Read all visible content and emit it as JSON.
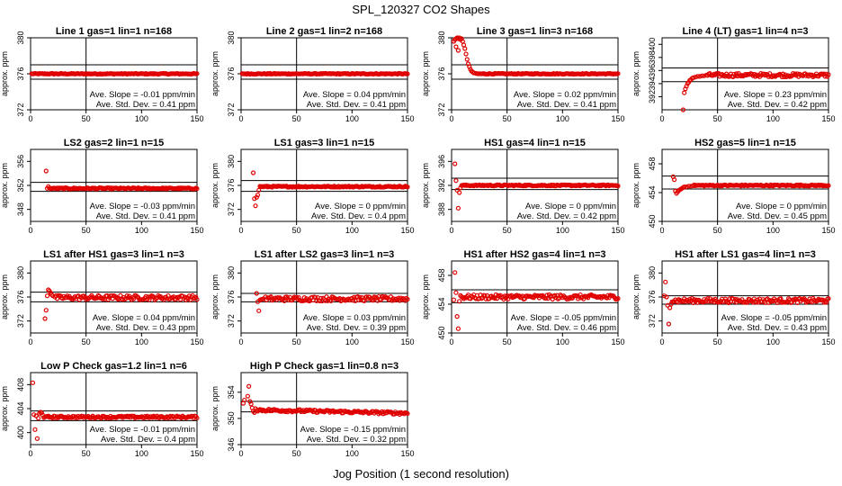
{
  "title": "SPL_120327  CO2 Shapes",
  "xlabel": "Jog Position (1 second resolution)",
  "ylabel": "approx. ppm",
  "chart_data": [
    {
      "type": "scatter",
      "title": "Line 1 gas=1 lin=1 n=168",
      "ylim": [
        372,
        380
      ],
      "yticks": [
        372,
        376,
        380
      ],
      "xlim": [
        0,
        150
      ],
      "xticks": [
        0,
        50,
        100,
        150
      ],
      "level": 376,
      "band": [
        375.4,
        377
      ],
      "start": 1,
      "end": 150,
      "noise": 0.05,
      "vline": 50,
      "transient": [],
      "slope_text": "Ave. Slope = -0.01  ppm/min",
      "std_text": "Ave. Std. Dev. = 0.41  ppm"
    },
    {
      "type": "scatter",
      "title": "Line 2 gas=1 lin=2 n=168",
      "ylim": [
        372,
        380
      ],
      "yticks": [
        372,
        376,
        380
      ],
      "xlim": [
        0,
        150
      ],
      "xticks": [
        0,
        50,
        100,
        150
      ],
      "level": 376,
      "band": [
        375.4,
        377
      ],
      "start": 1,
      "end": 150,
      "noise": 0.05,
      "vline": 50,
      "transient": [],
      "slope_text": "Ave. Slope = 0.04  ppm/min",
      "std_text": "Ave. Std. Dev. = 0.41  ppm"
    },
    {
      "type": "scatter",
      "title": "Line 3 gas=1 lin=3 n=168",
      "ylim": [
        372,
        380
      ],
      "yticks": [
        372,
        376,
        380
      ],
      "xlim": [
        0,
        150
      ],
      "xticks": [
        0,
        50,
        100,
        150
      ],
      "level": 376,
      "band": [
        375.4,
        377
      ],
      "start": 22,
      "end": 150,
      "noise": 0.05,
      "vline": 50,
      "transient": [
        [
          2,
          379.6
        ],
        [
          3,
          379.8
        ],
        [
          4,
          379.9
        ],
        [
          5,
          380
        ],
        [
          6,
          379.9
        ],
        [
          7,
          380
        ],
        [
          8,
          379.8
        ],
        [
          9,
          379.9
        ],
        [
          10,
          379.6
        ],
        [
          11,
          379.2
        ],
        [
          12,
          378.8
        ],
        [
          13,
          378.2
        ],
        [
          14,
          377.6
        ],
        [
          15,
          377.1
        ],
        [
          16,
          376.8
        ],
        [
          17,
          376.5
        ],
        [
          18,
          376.3
        ],
        [
          19,
          376.2
        ],
        [
          20,
          376.1
        ],
        [
          4,
          379.0
        ],
        [
          6,
          378.6
        ]
      ],
      "slope_text": "Ave. Slope = 0.02  ppm/min",
      "std_text": "Ave. Std. Dev. = 0.41  ppm"
    },
    {
      "type": "scatter",
      "title": "Line 4 (LT) gas=1 lin=4 n=3",
      "ylim": [
        390,
        401
      ],
      "yticks": [
        392,
        394,
        396,
        398,
        400
      ],
      "xlim": [
        0,
        150
      ],
      "xticks": [
        0,
        50,
        100,
        150
      ],
      "level": 395.3,
      "band": [
        394.3,
        396.4
      ],
      "start": 40,
      "end": 150,
      "noise": 0.2,
      "vline": 50,
      "transient": [
        [
          19,
          390
        ],
        [
          20,
          392.6
        ],
        [
          21,
          393.2
        ],
        [
          22,
          393.6
        ],
        [
          23,
          394
        ],
        [
          24,
          394.2
        ],
        [
          25,
          394.5
        ],
        [
          26,
          394.6
        ],
        [
          27,
          394.8
        ],
        [
          28,
          394.9
        ],
        [
          30,
          395
        ],
        [
          32,
          395.1
        ],
        [
          34,
          395.1
        ],
        [
          36,
          395.2
        ],
        [
          38,
          395.2
        ]
      ],
      "slope_text": "Ave. Slope = 0.23  ppm/min",
      "std_text": "Ave. Std. Dev. = 0.42  ppm"
    },
    {
      "type": "scatter",
      "title": "LS2 gas=2 lin=1 n=15",
      "ylim": [
        346,
        358
      ],
      "yticks": [
        348,
        352,
        356
      ],
      "xlim": [
        0,
        150
      ],
      "xticks": [
        0,
        50,
        100,
        150
      ],
      "level": 351.5,
      "band": [
        351,
        352.5
      ],
      "start": 17,
      "end": 150,
      "noise": 0.07,
      "vline": 50,
      "transient": [
        [
          14,
          354.4
        ],
        [
          15,
          351.5
        ],
        [
          16,
          351.8
        ]
      ],
      "slope_text": "Ave. Slope = -0.03  ppm/min",
      "std_text": "Ave. Std. Dev. = 0.41  ppm"
    },
    {
      "type": "scatter",
      "title": "LS1 gas=3 lin=1 n=15",
      "ylim": [
        370,
        382
      ],
      "yticks": [
        372,
        376,
        380
      ],
      "xlim": [
        0,
        150
      ],
      "xticks": [
        0,
        50,
        100,
        150
      ],
      "level": 375.8,
      "band": [
        375,
        376.8
      ],
      "start": 17,
      "end": 150,
      "noise": 0.07,
      "vline": 50,
      "transient": [
        [
          11,
          378.1
        ],
        [
          12,
          373.8
        ],
        [
          13,
          372.6
        ],
        [
          14,
          374
        ],
        [
          15,
          374.4
        ],
        [
          16,
          375.2
        ]
      ],
      "slope_text": "Ave. Slope = 0  ppm/min",
      "std_text": "Ave. Std. Dev. = 0.4  ppm"
    },
    {
      "type": "scatter",
      "title": "HS1 gas=4 lin=1 n=15",
      "ylim": [
        386,
        398
      ],
      "yticks": [
        388,
        392,
        396
      ],
      "xlim": [
        0,
        150
      ],
      "xticks": [
        0,
        50,
        100,
        150
      ],
      "level": 392,
      "band": [
        391.3,
        393.2
      ],
      "start": 9,
      "end": 150,
      "noise": 0.07,
      "vline": 50,
      "transient": [
        [
          3,
          395.6
        ],
        [
          4,
          392.8
        ],
        [
          5,
          391.2
        ],
        [
          6,
          388.2
        ],
        [
          7,
          390.8
        ],
        [
          8,
          391.6
        ]
      ],
      "slope_text": "Ave. Slope = 0  ppm/min",
      "std_text": "Ave. Std. Dev. = 0.42  ppm"
    },
    {
      "type": "scatter",
      "title": "HS2 gas=5 lin=1 n=15",
      "ylim": [
        450,
        460
      ],
      "yticks": [
        450,
        454,
        458
      ],
      "xlim": [
        0,
        150
      ],
      "xticks": [
        0,
        50,
        100,
        150
      ],
      "level": 455,
      "band": [
        454.5,
        456.3
      ],
      "start": 28,
      "end": 150,
      "noise": 0.07,
      "vline": 50,
      "transient": [
        [
          10,
          456.2
        ],
        [
          11,
          455.8
        ],
        [
          12,
          454.2
        ],
        [
          13,
          453.9
        ],
        [
          14,
          454.1
        ],
        [
          15,
          454.3
        ],
        [
          16,
          454.4
        ],
        [
          17,
          454.5
        ],
        [
          18,
          454.6
        ],
        [
          19,
          454.7
        ],
        [
          20,
          454.8
        ],
        [
          22,
          454.8
        ],
        [
          24,
          454.9
        ],
        [
          26,
          454.9
        ]
      ],
      "slope_text": "Ave. Slope = 0  ppm/min",
      "std_text": "Ave. Std. Dev. = 0.45  ppm"
    },
    {
      "type": "scatter",
      "title": "LS1 after HS1 gas=3 lin=1 n=3",
      "ylim": [
        370,
        382
      ],
      "yticks": [
        372,
        376,
        380
      ],
      "xlim": [
        0,
        150
      ],
      "xticks": [
        0,
        50,
        100,
        150
      ],
      "level": 375.9,
      "band": [
        375.2,
        376.8
      ],
      "start": 22,
      "end": 150,
      "noise": 0.25,
      "vline": 50,
      "transient": [
        [
          13,
          372.4
        ],
        [
          14,
          373.8
        ],
        [
          15,
          376.2
        ],
        [
          16,
          377.2
        ],
        [
          17,
          377
        ],
        [
          18,
          376.7
        ],
        [
          19,
          376.4
        ],
        [
          20,
          376.2
        ]
      ],
      "slope_text": "Ave. Slope = 0.04  ppm/min",
      "std_text": "Ave. Std. Dev. = 0.43  ppm"
    },
    {
      "type": "scatter",
      "title": "LS1 after LS2 gas=3 lin=1 n=3",
      "ylim": [
        370,
        382
      ],
      "yticks": [
        372,
        376,
        380
      ],
      "xlim": [
        0,
        150
      ],
      "xticks": [
        0,
        50,
        100,
        150
      ],
      "level": 375.7,
      "band": [
        375.2,
        376.6
      ],
      "start": 22,
      "end": 150,
      "noise": 0.25,
      "vline": 50,
      "transient": [
        [
          14,
          376.6
        ],
        [
          15,
          375.2
        ],
        [
          16,
          373.7
        ],
        [
          17,
          375.5
        ],
        [
          18,
          375.6
        ],
        [
          19,
          375.6
        ],
        [
          20,
          375.7
        ]
      ],
      "slope_text": "Ave. Slope = 0.03  ppm/min",
      "std_text": "Ave. Std. Dev. = 0.39  ppm"
    },
    {
      "type": "scatter",
      "title": "HS1 after HS2 gas=4 lin=1 n=3",
      "ylim": [
        450,
        460
      ],
      "yticks": [
        450,
        454,
        458
      ],
      "xlim": [
        0,
        150
      ],
      "xticks": [
        0,
        50,
        100,
        150
      ],
      "level": 455,
      "band": [
        454.2,
        456
      ],
      "start": 9,
      "end": 150,
      "noise": 0.25,
      "vline": 50,
      "transient": [
        [
          2,
          454.6
        ],
        [
          3,
          458.4
        ],
        [
          4,
          455.6
        ],
        [
          5,
          452.3
        ],
        [
          6,
          450.6
        ],
        [
          7,
          454.4
        ],
        [
          8,
          455.2
        ]
      ],
      "slope_text": "Ave. Slope = -0.05  ppm/min",
      "std_text": "Ave. Std. Dev. = 0.46  ppm"
    },
    {
      "type": "scatter",
      "title": "HS1 after LS1 gas=4 lin=1 n=3",
      "ylim": [
        370,
        382
      ],
      "yticks": [
        372,
        376,
        380
      ],
      "xlim": [
        0,
        150
      ],
      "xticks": [
        0,
        50,
        100,
        150
      ],
      "level": 375.4,
      "band": [
        374.8,
        376.2
      ],
      "start": 10,
      "end": 150,
      "noise": 0.25,
      "vline": 50,
      "transient": [
        [
          2,
          376.2
        ],
        [
          3,
          378.5
        ],
        [
          4,
          376
        ],
        [
          5,
          374.6
        ],
        [
          6,
          371.5
        ],
        [
          7,
          374.2
        ],
        [
          8,
          374.8
        ],
        [
          9,
          375.2
        ]
      ],
      "slope_text": "Ave. Slope = -0.05  ppm/min",
      "std_text": "Ave. Std. Dev. = 0.43  ppm"
    },
    {
      "type": "scatter",
      "title": "Low P Check gas=1.2 lin=1 n=6",
      "ylim": [
        398,
        410
      ],
      "yticks": [
        400,
        404,
        408
      ],
      "xlim": [
        0,
        150
      ],
      "xticks": [
        0,
        50,
        100,
        150
      ],
      "level": 402.6,
      "band": [
        402,
        403.6
      ],
      "start": 15,
      "end": 150,
      "noise": 0.12,
      "vline": 50,
      "transient": [
        [
          2,
          408.3
        ],
        [
          3,
          403
        ],
        [
          4,
          400.5
        ],
        [
          5,
          402.8
        ],
        [
          6,
          399
        ],
        [
          7,
          402.4
        ],
        [
          8,
          403.2
        ],
        [
          9,
          403.4
        ],
        [
          10,
          403.3
        ],
        [
          11,
          402.9
        ],
        [
          12,
          402.5
        ],
        [
          13,
          402.6
        ],
        [
          14,
          402.7
        ]
      ],
      "slope_text": "Ave. Slope = -0.01  ppm/min",
      "std_text": "Ave. Std. Dev. = 0.4  ppm"
    },
    {
      "type": "scatter",
      "title": "High P Check gas=1 lin=0.8 n=3",
      "ylim": [
        346,
        357
      ],
      "yticks": [
        346,
        350,
        354
      ],
      "xlim": [
        0,
        150
      ],
      "xticks": [
        0,
        50,
        100,
        150
      ],
      "level": 351.3,
      "band": [
        351,
        352.6
      ],
      "start": 14,
      "end": 150,
      "noise": 0.15,
      "vline": 50,
      "slope_end": 350.8,
      "transient": [
        [
          2,
          352.3
        ],
        [
          3,
          352.8
        ],
        [
          6,
          353.4
        ],
        [
          7,
          354.9
        ],
        [
          8,
          352.6
        ],
        [
          9,
          352.2
        ],
        [
          10,
          351.6
        ],
        [
          11,
          351.1
        ],
        [
          12,
          350.9
        ],
        [
          13,
          351.5
        ]
      ],
      "slope_text": "Ave. Slope = -0.15  ppm/min",
      "std_text": "Ave. Std. Dev. = 0.32  ppm"
    }
  ]
}
